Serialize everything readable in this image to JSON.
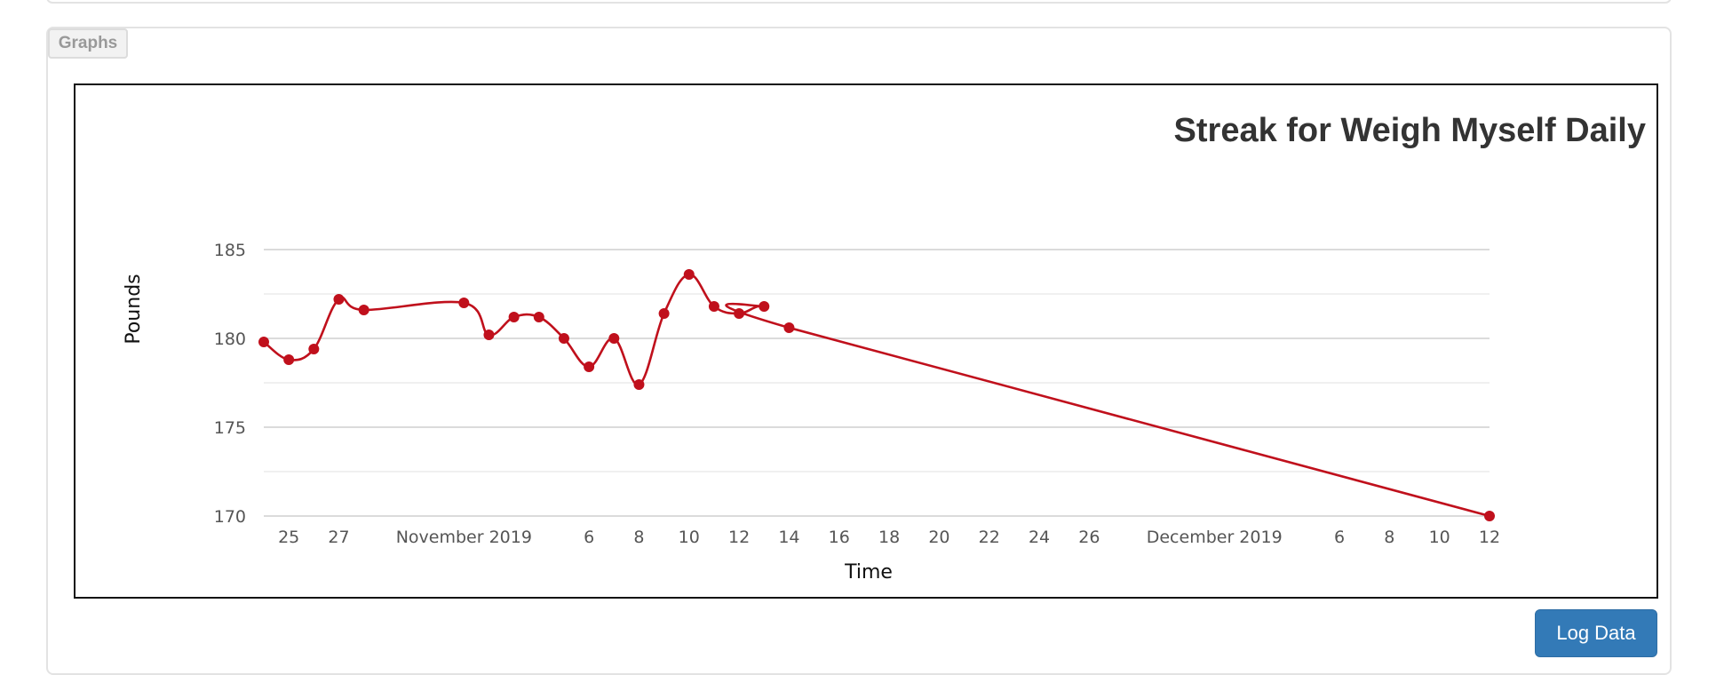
{
  "panel": {
    "tab_label": "Graphs"
  },
  "log_button_label": "Log Data",
  "chart_data": {
    "type": "line",
    "title": "Streak for Weigh Myself Daily",
    "xlabel": "Time",
    "ylabel": "Pounds",
    "ylim": [
      170,
      185
    ],
    "yticks": [
      170,
      175,
      180,
      185
    ],
    "grid": true,
    "x_tick_labels": [
      "25",
      "27",
      "November 2019",
      "6",
      "8",
      "10",
      "12",
      "14",
      "16",
      "18",
      "20",
      "22",
      "24",
      "26",
      "December 2019",
      "6",
      "8",
      "10",
      "12"
    ],
    "x_tick_dates": [
      "2019-10-25",
      "2019-10-27",
      "2019-11-01",
      "2019-11-06",
      "2019-11-08",
      "2019-11-10",
      "2019-11-12",
      "2019-11-14",
      "2019-11-16",
      "2019-11-18",
      "2019-11-20",
      "2019-11-22",
      "2019-11-24",
      "2019-11-26",
      "2019-12-01",
      "2019-12-06",
      "2019-12-08",
      "2019-12-10",
      "2019-12-12"
    ],
    "series": [
      {
        "color": "#c0101c",
        "x": [
          "2019-10-24",
          "2019-10-25",
          "2019-10-26",
          "2019-10-27",
          "2019-10-28",
          "2019-11-01",
          "2019-11-02",
          "2019-11-03",
          "2019-11-04",
          "2019-11-05",
          "2019-11-06",
          "2019-11-07",
          "2019-11-08",
          "2019-11-09",
          "2019-11-10",
          "2019-11-11",
          "2019-11-12",
          "2019-11-13",
          "2019-11-14",
          "2019-12-12"
        ],
        "y": [
          179.8,
          178.8,
          179.4,
          182.2,
          181.6,
          182.0,
          180.2,
          181.2,
          181.2,
          180.0,
          178.4,
          180.0,
          177.4,
          181.4,
          183.6,
          181.8,
          181.4,
          181.8,
          180.6,
          170.0
        ]
      }
    ]
  }
}
